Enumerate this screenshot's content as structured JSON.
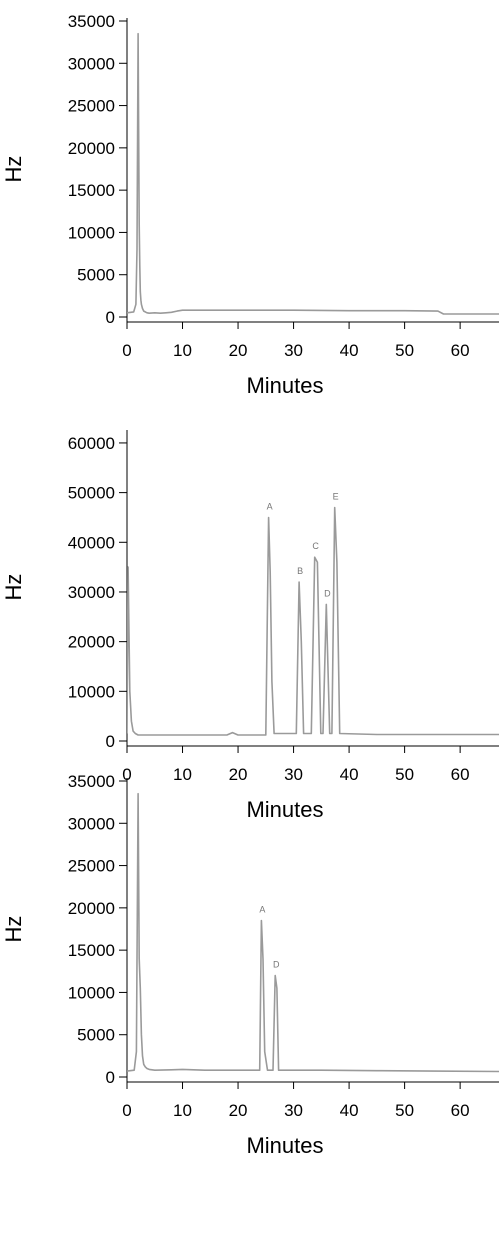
{
  "colors": {
    "trace": "#9a9a9a",
    "axis": "#000000",
    "baseline": "#a8a8a8"
  },
  "chart_data": [
    {
      "type": "line",
      "xlabel": "Minutes",
      "ylabel": "Hz",
      "xlim": [
        0,
        67
      ],
      "ylim": [
        0,
        35000
      ],
      "xticks": [
        0,
        10,
        20,
        30,
        40,
        50,
        60
      ],
      "yticks": [
        0,
        5000,
        10000,
        15000,
        20000,
        25000,
        30000,
        35000
      ],
      "grid": false,
      "series": [
        {
          "x": [
            0,
            1.2,
            1.6,
            1.8,
            2.0,
            2.1,
            2.2,
            2.3,
            2.4,
            2.5,
            2.6,
            2.8,
            3.0,
            3.3,
            3.6,
            4.0,
            5.0,
            6.0,
            7.0,
            8.0,
            9.0,
            10.0,
            11.0,
            20.0,
            30.0,
            40.0,
            50.0,
            56.0,
            57.0,
            60.0,
            67.0
          ],
          "y": [
            500,
            600,
            1500,
            8000,
            33500,
            21000,
            11000,
            6000,
            3000,
            2000,
            1500,
            1000,
            700,
            600,
            500,
            450,
            500,
            450,
            500,
            550,
            700,
            800,
            800,
            800,
            800,
            750,
            750,
            700,
            350,
            350,
            350
          ]
        }
      ],
      "peaks": []
    },
    {
      "type": "line",
      "xlabel": "Minutes",
      "ylabel": "Hz",
      "xlim": [
        0,
        67
      ],
      "ylim": [
        0,
        62000
      ],
      "xticks": [
        0,
        10,
        20,
        30,
        40,
        50,
        60
      ],
      "yticks": [
        0,
        10000,
        20000,
        30000,
        40000,
        50000,
        60000
      ],
      "grid": false,
      "series": [
        {
          "x": [
            0,
            0.2,
            0.5,
            0.8,
            1.1,
            1.5,
            2.0,
            5,
            10,
            18,
            19,
            20,
            25,
            25.5,
            25.8,
            26.1,
            26.5,
            30.5,
            31.0,
            31.4,
            31.8,
            33.2,
            33.8,
            34.3,
            34.9,
            35.3,
            35.9,
            36.5,
            36.9,
            37.4,
            37.8,
            38.3,
            45,
            55,
            67
          ],
          "y": [
            1500,
            35000,
            10000,
            4000,
            2000,
            1500,
            1200,
            1200,
            1200,
            1200,
            1700,
            1200,
            1200,
            45000,
            34000,
            12000,
            1500,
            1500,
            32000,
            20000,
            1500,
            1500,
            37000,
            36000,
            1500,
            1500,
            27500,
            1500,
            1500,
            47000,
            36000,
            1500,
            1300,
            1300,
            1300
          ]
        }
      ],
      "peaks": [
        {
          "label": "A",
          "x": 25.5,
          "y": 45000
        },
        {
          "label": "B",
          "x": 31.0,
          "y": 32000
        },
        {
          "label": "C",
          "x": 33.8,
          "y": 37000
        },
        {
          "label": "D",
          "x": 35.9,
          "y": 27500
        },
        {
          "label": "E",
          "x": 37.4,
          "y": 47000
        }
      ]
    },
    {
      "type": "line",
      "xlabel": "Minutes",
      "ylabel": "Hz",
      "xlim": [
        0,
        67
      ],
      "ylim": [
        0,
        35000
      ],
      "xticks": [
        0,
        10,
        20,
        30,
        40,
        50,
        60
      ],
      "yticks": [
        0,
        5000,
        10000,
        15000,
        20000,
        25000,
        30000,
        35000
      ],
      "grid": false,
      "series": [
        {
          "x": [
            0,
            1.3,
            1.7,
            2.0,
            2.2,
            2.4,
            2.6,
            2.8,
            3.0,
            3.3,
            3.6,
            4.0,
            5.0,
            8,
            10,
            14,
            22,
            23.9,
            24.2,
            24.5,
            24.8,
            25.3,
            26.3,
            26.7,
            27.0,
            27.3,
            28,
            35,
            45,
            55,
            67
          ],
          "y": [
            700,
            800,
            3000,
            33500,
            14000,
            10500,
            5000,
            2500,
            1500,
            1200,
            1000,
            900,
            800,
            850,
            900,
            800,
            800,
            800,
            18500,
            14000,
            3000,
            800,
            800,
            12000,
            10500,
            800,
            800,
            800,
            750,
            700,
            650
          ]
        }
      ],
      "peaks": [
        {
          "label": "A",
          "x": 24.2,
          "y": 18500
        },
        {
          "label": "D",
          "x": 26.7,
          "y": 12000
        }
      ]
    }
  ]
}
